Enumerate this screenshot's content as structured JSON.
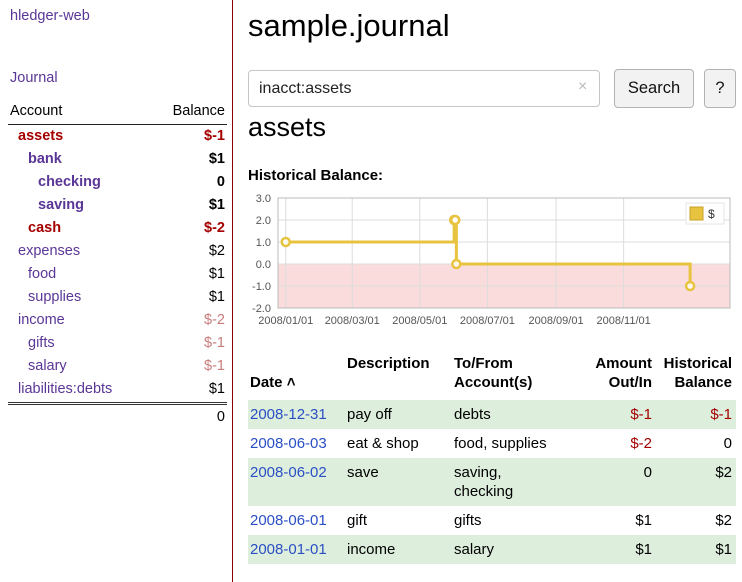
{
  "colors": {
    "purple": "#5a3696",
    "neg-dark": "#a40000",
    "neg-light": "#c97c7c",
    "link-blue": "#2a4fc4",
    "row-green": "#ddeedd",
    "divider-red": "#8b0000"
  },
  "brand": {
    "title": "hledger-web",
    "nav_journal": "Journal"
  },
  "sidebar": {
    "col_account": "Account",
    "col_balance": "Balance",
    "accounts": [
      {
        "name": "assets",
        "balance": "$-1"
      },
      {
        "name": "bank",
        "balance": "$1"
      },
      {
        "name": "checking",
        "balance": "0"
      },
      {
        "name": "saving",
        "balance": "$1"
      },
      {
        "name": "cash",
        "balance": "$-2"
      },
      {
        "name": "expenses",
        "balance": "$2"
      },
      {
        "name": "food",
        "balance": "$1"
      },
      {
        "name": "supplies",
        "balance": "$1"
      },
      {
        "name": "income",
        "balance": "$-2"
      },
      {
        "name": "gifts",
        "balance": "$-1"
      },
      {
        "name": "salary",
        "balance": "$-1"
      },
      {
        "name": "liabilities:debts",
        "balance": "$1"
      }
    ],
    "total": "0"
  },
  "header": {
    "title": "sample.journal"
  },
  "search": {
    "value": "inacct:assets",
    "clear_icon": "×",
    "search_button": "Search",
    "help_button": "?"
  },
  "account_page": {
    "heading": "assets",
    "chart_title": "Historical Balance:"
  },
  "chart_data": {
    "type": "line",
    "title": "Historical Balance",
    "xlim": [
      "2007-12-25",
      "2009-02-05"
    ],
    "ylim": [
      -2,
      3
    ],
    "y_ticks": [
      3.0,
      2.0,
      1.0,
      0.0,
      -1.0,
      -2.0
    ],
    "x_ticks": [
      "2008/01/01",
      "2008/03/01",
      "2008/05/01",
      "2008/07/01",
      "2008/09/01",
      "2008/11/01"
    ],
    "x_tick_dates": [
      "2008-01-01",
      "2008-03-01",
      "2008-05-01",
      "2008-07-01",
      "2008-09-01",
      "2008-11-01"
    ],
    "grid": true,
    "legend_position": "top-right",
    "negative_region_color": "#fbdcdc",
    "series": [
      {
        "name": "$",
        "color": "#e8c33f",
        "line_style": "step",
        "points": [
          [
            "2008-01-01",
            1
          ],
          [
            "2008-06-01",
            2
          ],
          [
            "2008-06-02",
            2
          ],
          [
            "2008-06-03",
            0
          ],
          [
            "2008-12-31",
            -1
          ]
        ]
      }
    ]
  },
  "register": {
    "headers": {
      "date": "Date",
      "sort_icon": "˄",
      "description": "Description",
      "tofrom": "To/From\nAccount(s)",
      "amount": "Amount\nOut/In",
      "balance": "Historical\nBalance"
    },
    "rows": [
      {
        "date": "2008-12-31",
        "description": "pay off",
        "accounts": "debts",
        "amount": "$-1",
        "balance": "$-1"
      },
      {
        "date": "2008-06-03",
        "description": "eat & shop",
        "accounts": "food, supplies",
        "amount": "$-2",
        "balance": "0"
      },
      {
        "date": "2008-06-02",
        "description": "save",
        "accounts": "saving, checking",
        "amount": "0",
        "balance": "$2"
      },
      {
        "date": "2008-06-01",
        "description": "gift",
        "accounts": "gifts",
        "amount": "$1",
        "balance": "$2"
      },
      {
        "date": "2008-01-01",
        "description": "income",
        "accounts": "salary",
        "amount": "$1",
        "balance": "$1"
      }
    ]
  }
}
